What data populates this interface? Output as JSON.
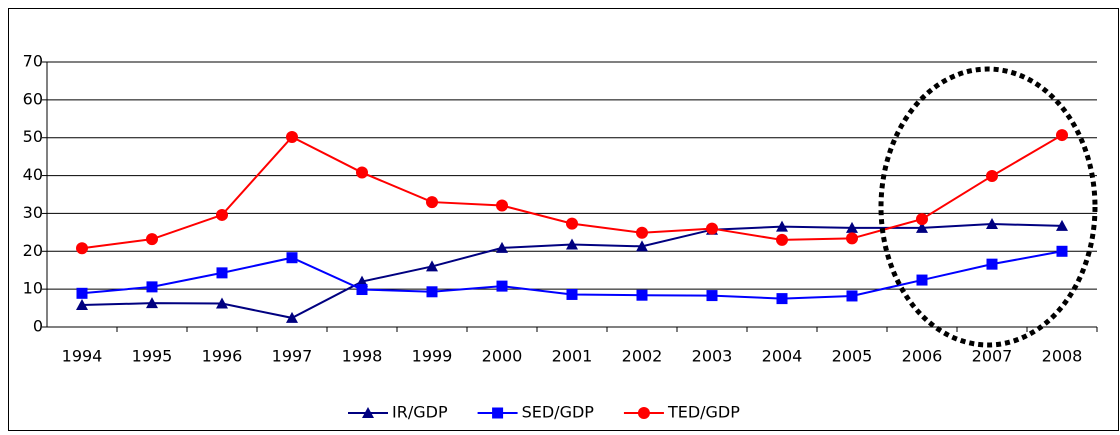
{
  "chart_data": {
    "type": "line",
    "categories": [
      "1994",
      "1995",
      "1996",
      "1997",
      "1998",
      "1999",
      "2000",
      "2001",
      "2002",
      "2003",
      "2004",
      "2005",
      "2006",
      "2007",
      "2008"
    ],
    "series": [
      {
        "name": "IR/GDP",
        "color": "#000080",
        "marker": "triangle",
        "values": [
          5.8,
          6.3,
          6.2,
          2.4,
          12.0,
          16.0,
          20.9,
          21.8,
          21.3,
          25.7,
          26.5,
          26.2,
          26.2,
          27.2,
          26.7
        ]
      },
      {
        "name": "SED/GDP",
        "color": "#0000ff",
        "marker": "square",
        "values": [
          8.9,
          10.6,
          14.3,
          18.3,
          9.9,
          9.3,
          10.8,
          8.6,
          8.4,
          8.3,
          7.5,
          8.2,
          12.4,
          16.6,
          20.0
        ]
      },
      {
        "name": "TED/GDP",
        "color": "#ff0000",
        "marker": "circle",
        "values": [
          20.8,
          23.2,
          29.6,
          50.2,
          40.8,
          33.0,
          32.1,
          27.3,
          24.9,
          26.0,
          23.0,
          23.4,
          28.5,
          39.9,
          50.7
        ]
      }
    ],
    "ylim": [
      0,
      70
    ],
    "yticks": [
      0,
      10,
      20,
      30,
      40,
      50,
      60,
      70
    ],
    "grid": true,
    "legend": "bottom"
  }
}
